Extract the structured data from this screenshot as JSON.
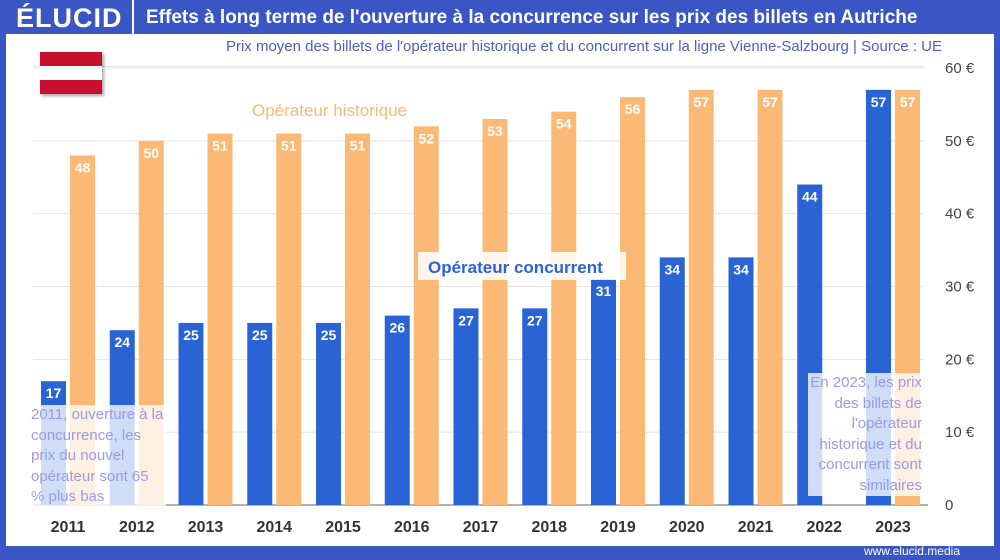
{
  "header": {
    "logo": "ÉLUCID",
    "title": "Effets à long terme de l'ouverture à la concurrence sur les prix des billets en Autriche"
  },
  "subtitle": "Prix moyen des billets de l'opérateur historique et du concurrent sur la ligne Vienne-Salzbourg  |  Source : UE",
  "flag_colors": [
    "#c8102e",
    "#ffffff",
    "#c8102e"
  ],
  "footer": "www.elucid.media",
  "chart_data": {
    "type": "bar",
    "categories": [
      "2011",
      "2012",
      "2013",
      "2014",
      "2015",
      "2016",
      "2017",
      "2018",
      "2019",
      "2020",
      "2021",
      "2022",
      "2023"
    ],
    "series": [
      {
        "name": "Opérateur concurrent",
        "color": "#2a63d4",
        "values": [
          17,
          24,
          25,
          25,
          25,
          26,
          27,
          27,
          31,
          34,
          34,
          44,
          57
        ]
      },
      {
        "name": "Opérateur historique",
        "color": "#fcb975",
        "values": [
          48,
          50,
          51,
          51,
          51,
          52,
          53,
          54,
          56,
          57,
          57,
          null,
          57
        ]
      }
    ],
    "ylim": [
      0,
      60
    ],
    "yticks": [
      0,
      10,
      20,
      30,
      40,
      50,
      60
    ],
    "ytick_labels": [
      "0",
      "10 €",
      "20 €",
      "30 €",
      "40 €",
      "50 €",
      "60 €"
    ],
    "y_axis_position": "right",
    "grid": true,
    "annotations": [
      "2011, ouverture à la concurrence, les prix du nouvel opérateur sont 65 % plus bas",
      "En 2023, les prix des billets de l'opérateur historique et du concurrent sont similaires"
    ]
  }
}
